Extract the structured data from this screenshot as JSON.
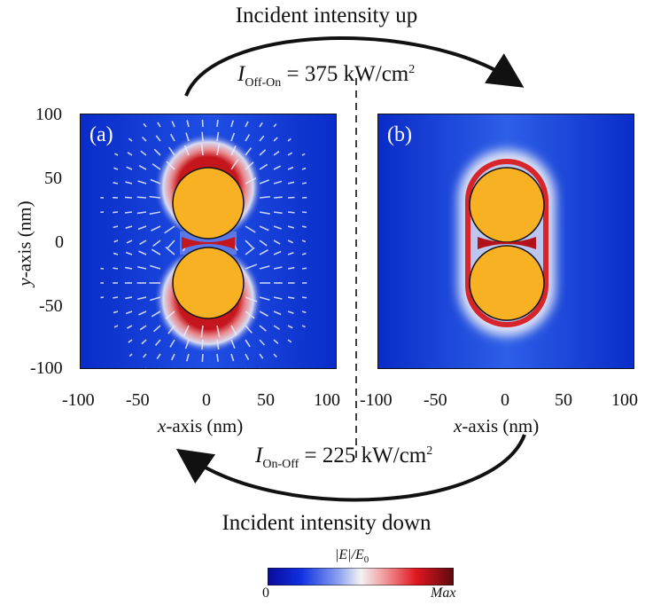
{
  "titles": {
    "top": "Incident intensity up",
    "bottom": "Incident intensity down"
  },
  "equations": {
    "off_on": {
      "symbol": "I",
      "subscript": "Off-On",
      "rhs": "= 375 kW/cm",
      "exponent": "2"
    },
    "on_off": {
      "symbol": "I",
      "subscript": "On-Off",
      "rhs": "= 225 kW/cm",
      "exponent": "2"
    }
  },
  "panels": {
    "a": {
      "label": "(a)"
    },
    "b": {
      "label": "(b)"
    }
  },
  "axes": {
    "x_label_prefix": "x",
    "x_label_suffix": "-axis (nm)",
    "y_label_prefix": "y",
    "y_label_suffix": "-axis (nm)",
    "x_ticks": [
      "-100",
      "-50",
      "0",
      "50",
      "100"
    ],
    "y_ticks": [
      "100",
      "50",
      "0",
      "-50",
      "-100"
    ]
  },
  "colorbar": {
    "title_left": "|E|/E",
    "title_sub": "0",
    "min": "0",
    "max": "Max"
  },
  "colors": {
    "field_background": "#0a2fd0",
    "particle": "#f9b124",
    "hotspot": "#c4161c",
    "arrow": "#111111"
  }
}
